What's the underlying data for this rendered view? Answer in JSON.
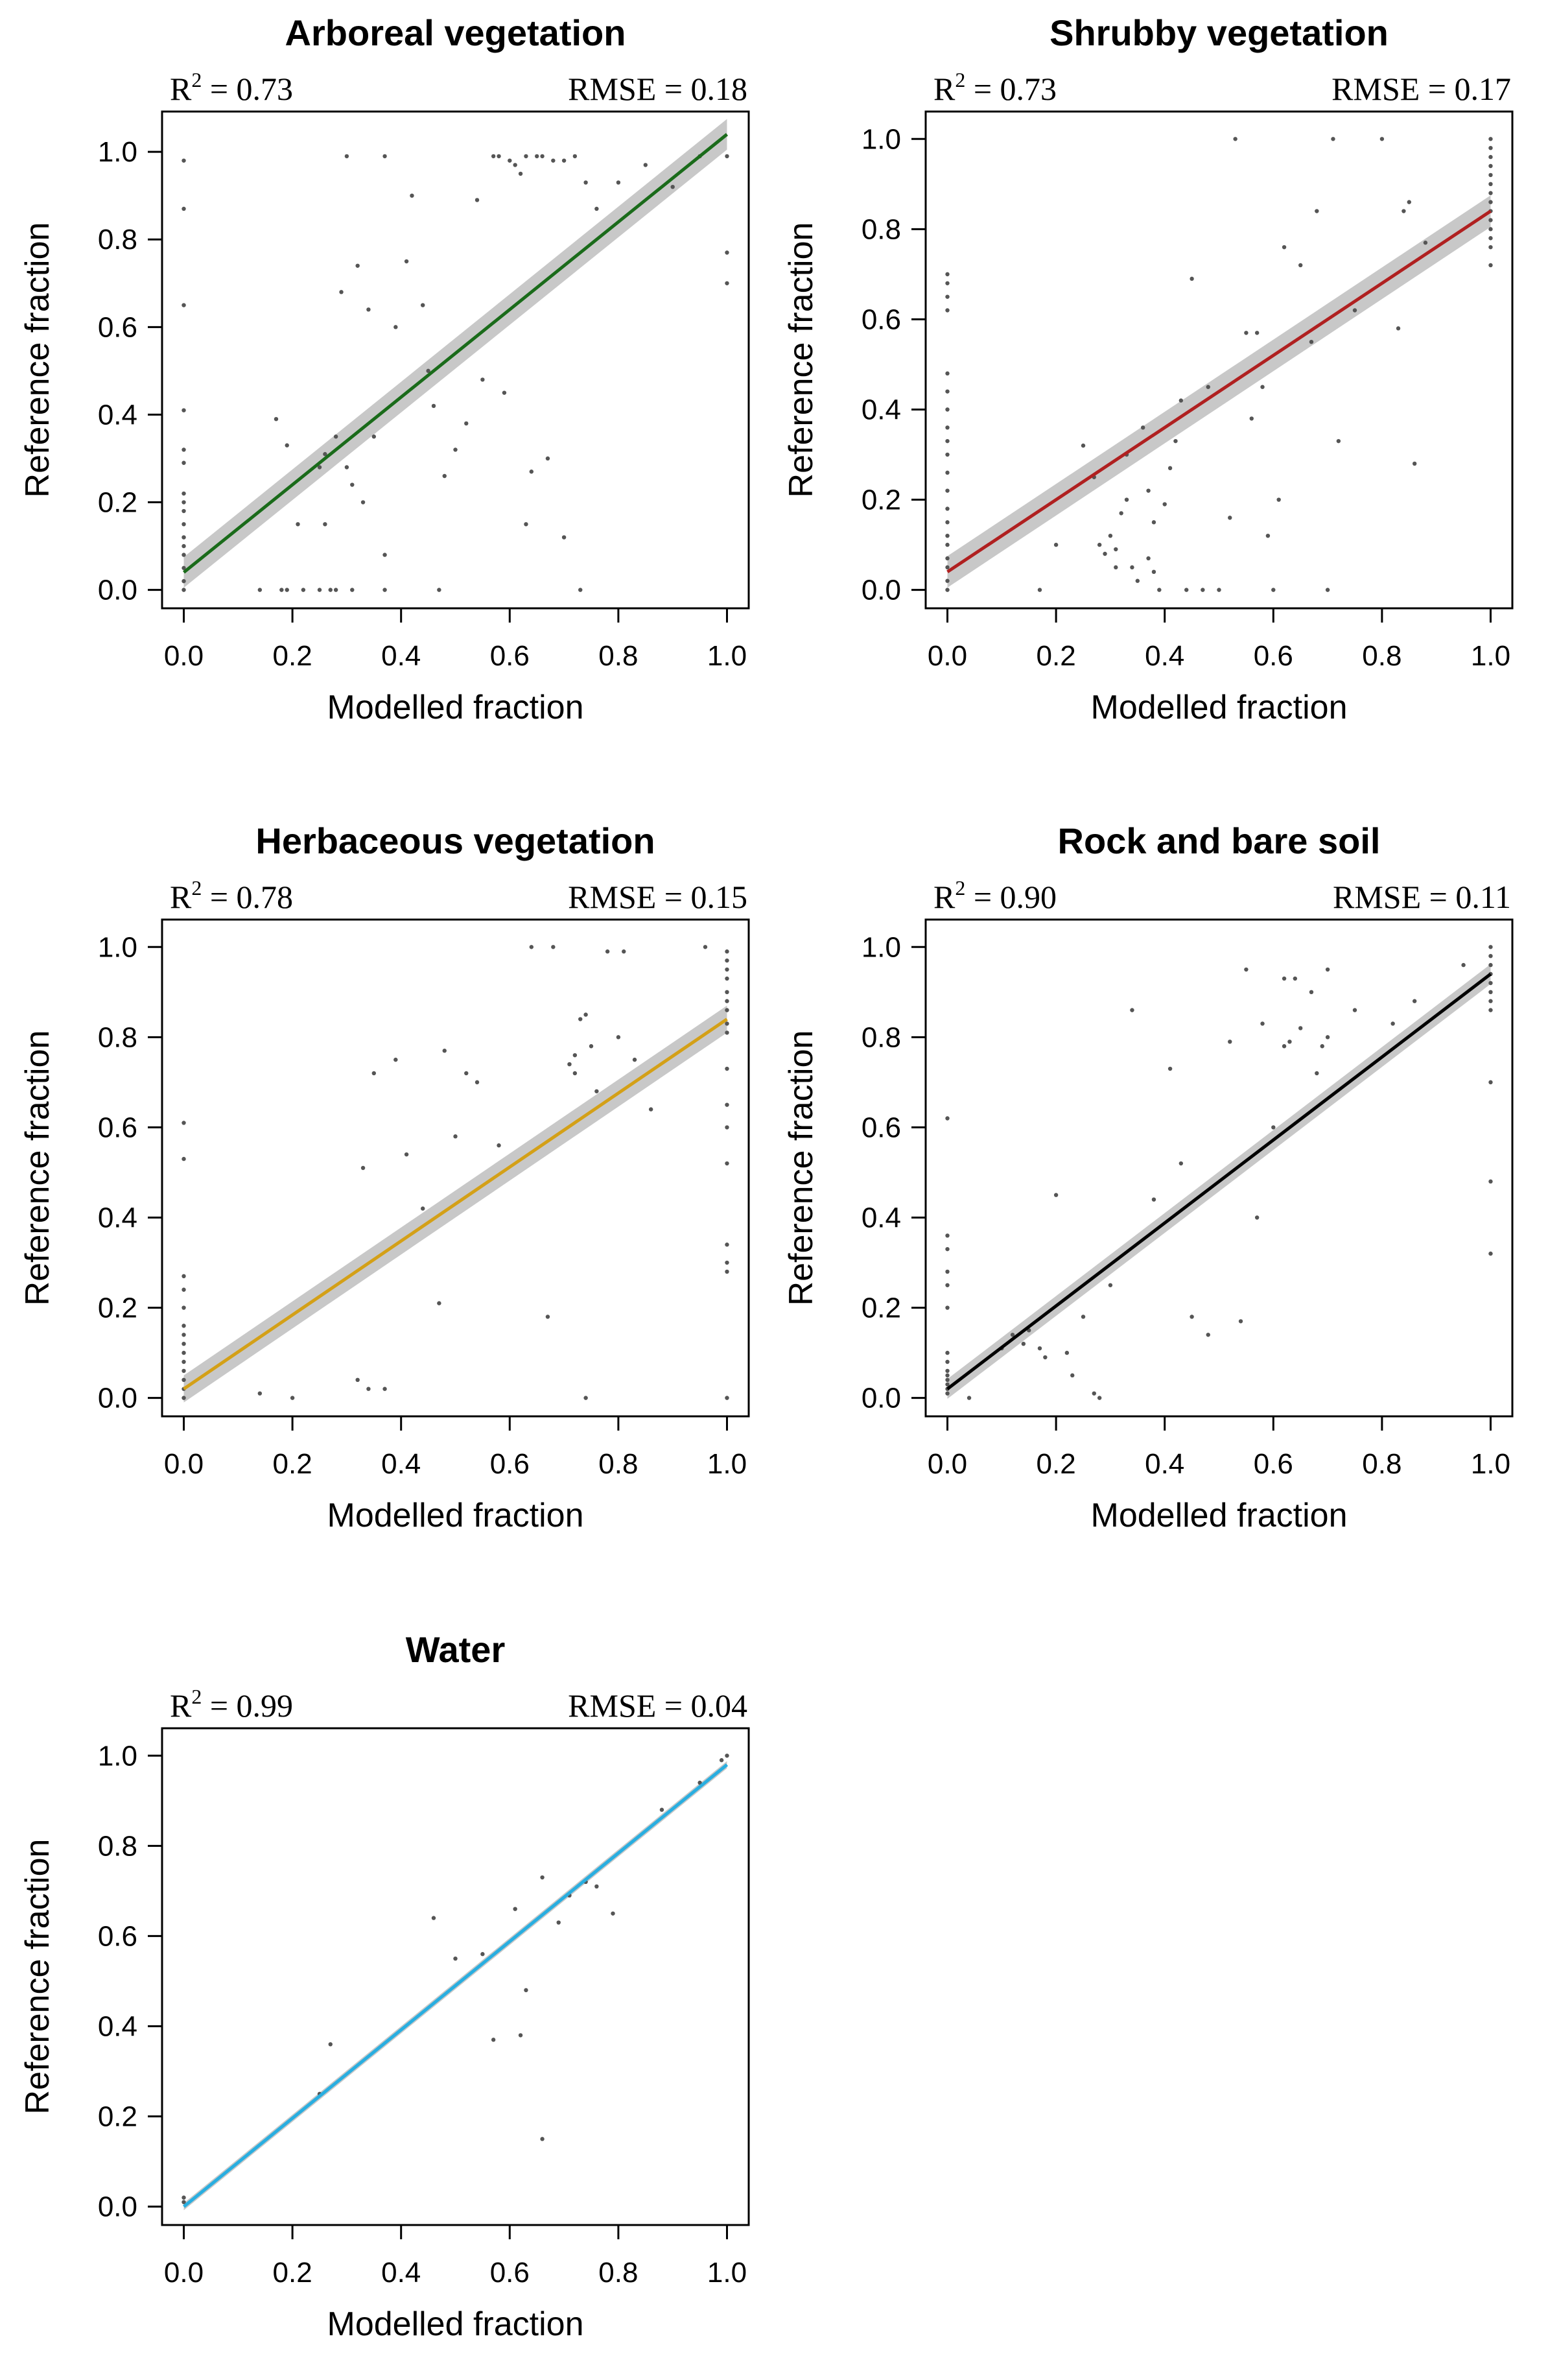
{
  "chart_data": [
    {
      "type": "scatter",
      "title": "Arboreal vegetation",
      "r2": "0.73",
      "rmse": "RMSE = 0.18",
      "xlabel": "Modelled fraction",
      "ylabel": "Reference fraction",
      "xlim": [
        0,
        1
      ],
      "ylim": [
        0,
        1.05
      ],
      "xticks": [
        "0.0",
        "0.2",
        "0.4",
        "0.6",
        "0.8",
        "1.0"
      ],
      "yticks": [
        "0.0",
        "0.2",
        "0.4",
        "0.6",
        "0.8",
        "1.0"
      ],
      "fit": {
        "x0": 0,
        "y0": 0.04,
        "x1": 1,
        "y1": 1.04,
        "band": 0.035,
        "color": "#1a6b1a"
      },
      "points": [
        [
          0,
          0.98
        ],
        [
          0,
          0.87
        ],
        [
          0,
          0.65
        ],
        [
          0,
          0.41
        ],
        [
          0,
          0.32
        ],
        [
          0,
          0.29
        ],
        [
          0,
          0.22
        ],
        [
          0,
          0.2
        ],
        [
          0,
          0.18
        ],
        [
          0,
          0.15
        ],
        [
          0,
          0.12
        ],
        [
          0,
          0.1
        ],
        [
          0,
          0.08
        ],
        [
          0,
          0.05
        ],
        [
          0,
          0.02
        ],
        [
          0,
          0
        ],
        [
          0.17,
          0.39
        ],
        [
          0.19,
          0.33
        ],
        [
          0.25,
          0.28
        ],
        [
          0.26,
          0.31
        ],
        [
          0.28,
          0.35
        ],
        [
          0.3,
          0.28
        ],
        [
          0.31,
          0.24
        ],
        [
          0.33,
          0.2
        ],
        [
          0.35,
          0.35
        ],
        [
          0.29,
          0.68
        ],
        [
          0.32,
          0.74
        ],
        [
          0.34,
          0.64
        ],
        [
          0.37,
          0.99
        ],
        [
          0.39,
          0.6
        ],
        [
          0.41,
          0.75
        ],
        [
          0.42,
          0.9
        ],
        [
          0.44,
          0.65
        ],
        [
          0.45,
          0.5
        ],
        [
          0.46,
          0.42
        ],
        [
          0.48,
          0.26
        ],
        [
          0.5,
          0.32
        ],
        [
          0.52,
          0.38
        ],
        [
          0.54,
          0.89
        ],
        [
          0.55,
          0.48
        ],
        [
          0.57,
          0.99
        ],
        [
          0.58,
          0.99
        ],
        [
          0.59,
          0.45
        ],
        [
          0.6,
          0.98
        ],
        [
          0.61,
          0.97
        ],
        [
          0.62,
          0.95
        ],
        [
          0.63,
          0.99
        ],
        [
          0.64,
          0.27
        ],
        [
          0.65,
          0.99
        ],
        [
          0.66,
          0.99
        ],
        [
          0.68,
          0.98
        ],
        [
          0.7,
          0.98
        ],
        [
          0.72,
          0.99
        ],
        [
          0.74,
          0.93
        ],
        [
          0.76,
          0.87
        ],
        [
          0.8,
          0.93
        ],
        [
          0.85,
          0.97
        ],
        [
          0.9,
          0.92
        ],
        [
          0.95,
          0.99
        ],
        [
          1,
          0.99
        ],
        [
          1,
          0.77
        ],
        [
          1,
          0.7
        ],
        [
          0.14,
          0
        ],
        [
          0.18,
          0
        ],
        [
          0.19,
          0
        ],
        [
          0.22,
          0
        ],
        [
          0.25,
          0
        ],
        [
          0.27,
          0
        ],
        [
          0.28,
          0
        ],
        [
          0.31,
          0
        ],
        [
          0.37,
          0
        ],
        [
          0.47,
          0
        ],
        [
          0.73,
          0
        ],
        [
          0.21,
          0.15
        ],
        [
          0.26,
          0.15
        ],
        [
          0.37,
          0.08
        ],
        [
          0.3,
          0.99
        ],
        [
          0.63,
          0.15
        ],
        [
          0.67,
          0.3
        ],
        [
          0.7,
          0.12
        ]
      ]
    },
    {
      "type": "scatter",
      "title": "Shrubby vegetation",
      "r2": "0.73",
      "rmse": "RMSE = 0.17",
      "xlabel": "Modelled fraction",
      "ylabel": "Reference fraction",
      "xlim": [
        0,
        1
      ],
      "ylim": [
        0,
        1.02
      ],
      "xticks": [
        "0.0",
        "0.2",
        "0.4",
        "0.6",
        "0.8",
        "1.0"
      ],
      "yticks": [
        "0.0",
        "0.2",
        "0.4",
        "0.6",
        "0.8",
        "1.0"
      ],
      "fit": {
        "x0": 0,
        "y0": 0.04,
        "x1": 1,
        "y1": 0.84,
        "band": 0.035,
        "color": "#b02020"
      },
      "points": [
        [
          0,
          0.7
        ],
        [
          0,
          0.68
        ],
        [
          0,
          0.65
        ],
        [
          0,
          0.62
        ],
        [
          0,
          0.48
        ],
        [
          0,
          0.44
        ],
        [
          0,
          0.4
        ],
        [
          0,
          0.36
        ],
        [
          0,
          0.33
        ],
        [
          0,
          0.3
        ],
        [
          0,
          0.26
        ],
        [
          0,
          0.22
        ],
        [
          0,
          0.18
        ],
        [
          0,
          0.15
        ],
        [
          0,
          0.12
        ],
        [
          0,
          0.1
        ],
        [
          0,
          0.07
        ],
        [
          0,
          0.05
        ],
        [
          0,
          0.02
        ],
        [
          0,
          0
        ],
        [
          0.17,
          0
        ],
        [
          0.2,
          0.1
        ],
        [
          0.25,
          0.32
        ],
        [
          0.27,
          0.25
        ],
        [
          0.28,
          0.1
        ],
        [
          0.29,
          0.08
        ],
        [
          0.3,
          0.12
        ],
        [
          0.31,
          0.05
        ],
        [
          0.32,
          0.17
        ],
        [
          0.33,
          0.3
        ],
        [
          0.34,
          0.05
        ],
        [
          0.35,
          0.02
        ],
        [
          0.36,
          0.36
        ],
        [
          0.37,
          0.22
        ],
        [
          0.38,
          0.15
        ],
        [
          0.39,
          0.0
        ],
        [
          0.4,
          0.19
        ],
        [
          0.41,
          0.27
        ],
        [
          0.42,
          0.33
        ],
        [
          0.43,
          0.42
        ],
        [
          0.44,
          0.0
        ],
        [
          0.45,
          0.69
        ],
        [
          0.47,
          0.0
        ],
        [
          0.48,
          0.45
        ],
        [
          0.5,
          0.0
        ],
        [
          0.53,
          1.0
        ],
        [
          0.55,
          0.57
        ],
        [
          0.56,
          0.38
        ],
        [
          0.57,
          0.57
        ],
        [
          0.58,
          0.45
        ],
        [
          0.6,
          0.0
        ],
        [
          0.61,
          0.2
        ],
        [
          0.62,
          0.76
        ],
        [
          0.65,
          0.72
        ],
        [
          0.67,
          0.55
        ],
        [
          0.68,
          0.84
        ],
        [
          0.7,
          0.0
        ],
        [
          0.71,
          1.0
        ],
        [
          0.72,
          0.33
        ],
        [
          0.75,
          0.62
        ],
        [
          0.8,
          1.0
        ],
        [
          0.83,
          0.58
        ],
        [
          0.84,
          0.84
        ],
        [
          0.85,
          0.86
        ],
        [
          0.86,
          0.28
        ],
        [
          0.88,
          0.77
        ],
        [
          1,
          1.0
        ],
        [
          1,
          0.98
        ],
        [
          1,
          0.96
        ],
        [
          1,
          0.94
        ],
        [
          1,
          0.92
        ],
        [
          1,
          0.9
        ],
        [
          1,
          0.88
        ],
        [
          1,
          0.86
        ],
        [
          1,
          0.84
        ],
        [
          1,
          0.82
        ],
        [
          1,
          0.8
        ],
        [
          1,
          0.78
        ],
        [
          1,
          0.76
        ],
        [
          1,
          0.72
        ],
        [
          0.31,
          0.09
        ],
        [
          0.37,
          0.07
        ],
        [
          0.33,
          0.2
        ],
        [
          0.38,
          0.04
        ],
        [
          0.52,
          0.16
        ],
        [
          0.59,
          0.12
        ]
      ]
    },
    {
      "type": "scatter",
      "title": "Herbaceous vegetation",
      "r2": "0.78",
      "rmse": "RMSE = 0.15",
      "xlabel": "Modelled fraction",
      "ylabel": "Reference fraction",
      "xlim": [
        0,
        1
      ],
      "ylim": [
        0,
        1.02
      ],
      "xticks": [
        "0.0",
        "0.2",
        "0.4",
        "0.6",
        "0.8",
        "1.0"
      ],
      "yticks": [
        "0.0",
        "0.2",
        "0.4",
        "0.6",
        "0.8",
        "1.0"
      ],
      "fit": {
        "x0": 0,
        "y0": 0.02,
        "x1": 1,
        "y1": 0.84,
        "band": 0.03,
        "color": "#d4a017"
      },
      "points": [
        [
          0,
          0.61
        ],
        [
          0,
          0.53
        ],
        [
          0,
          0.27
        ],
        [
          0,
          0.24
        ],
        [
          0,
          0.2
        ],
        [
          0,
          0.16
        ],
        [
          0,
          0.14
        ],
        [
          0,
          0.12
        ],
        [
          0,
          0.1
        ],
        [
          0,
          0.08
        ],
        [
          0,
          0.06
        ],
        [
          0,
          0.04
        ],
        [
          0,
          0.02
        ],
        [
          0,
          0.0
        ],
        [
          0.14,
          0.01
        ],
        [
          0.2,
          0.0
        ],
        [
          0.32,
          0.04
        ],
        [
          0.33,
          0.51
        ],
        [
          0.34,
          0.02
        ],
        [
          0.35,
          0.72
        ],
        [
          0.37,
          0.02
        ],
        [
          0.39,
          0.75
        ],
        [
          0.41,
          0.54
        ],
        [
          0.44,
          0.42
        ],
        [
          0.47,
          0.21
        ],
        [
          0.48,
          0.77
        ],
        [
          0.5,
          0.58
        ],
        [
          0.52,
          0.72
        ],
        [
          0.54,
          0.7
        ],
        [
          0.58,
          0.56
        ],
        [
          0.64,
          1.0
        ],
        [
          0.68,
          1.0
        ],
        [
          0.67,
          0.18
        ],
        [
          0.72,
          0.76
        ],
        [
          0.73,
          0.84
        ],
        [
          0.74,
          0.85
        ],
        [
          0.75,
          0.78
        ],
        [
          0.76,
          0.68
        ],
        [
          0.78,
          0.99
        ],
        [
          0.8,
          0.8
        ],
        [
          0.81,
          0.99
        ],
        [
          0.83,
          0.75
        ],
        [
          0.86,
          0.64
        ],
        [
          0.96,
          1.0
        ],
        [
          1,
          0.99
        ],
        [
          1,
          0.97
        ],
        [
          1,
          0.95
        ],
        [
          1,
          0.93
        ],
        [
          1,
          0.9
        ],
        [
          1,
          0.88
        ],
        [
          1,
          0.86
        ],
        [
          1,
          0.83
        ],
        [
          1,
          0.81
        ],
        [
          1,
          0.73
        ],
        [
          1,
          0.65
        ],
        [
          1,
          0.6
        ],
        [
          1,
          0.52
        ],
        [
          1,
          0.34
        ],
        [
          1,
          0.3
        ],
        [
          1,
          0.28
        ],
        [
          1,
          0.0
        ],
        [
          0.74,
          0.0
        ],
        [
          0.71,
          0.74
        ],
        [
          0.72,
          0.72
        ]
      ]
    },
    {
      "type": "scatter",
      "title": "Rock and bare soil",
      "r2": "0.90",
      "rmse": "RMSE = 0.11",
      "xlabel": "Modelled fraction",
      "ylabel": "Reference fraction",
      "xlim": [
        0,
        1
      ],
      "ylim": [
        0,
        1.02
      ],
      "xticks": [
        "0.0",
        "0.2",
        "0.4",
        "0.6",
        "0.8",
        "1.0"
      ],
      "yticks": [
        "0.0",
        "0.2",
        "0.4",
        "0.6",
        "0.8",
        "1.0"
      ],
      "fit": {
        "x0": 0,
        "y0": 0.02,
        "x1": 1,
        "y1": 0.94,
        "band": 0.022,
        "color": "#000000"
      },
      "points": [
        [
          0,
          0.62
        ],
        [
          0,
          0.36
        ],
        [
          0,
          0.33
        ],
        [
          0,
          0.28
        ],
        [
          0,
          0.25
        ],
        [
          0,
          0.2
        ],
        [
          0,
          0.1
        ],
        [
          0,
          0.08
        ],
        [
          0,
          0.06
        ],
        [
          0,
          0.05
        ],
        [
          0,
          0.04
        ],
        [
          0,
          0.03
        ],
        [
          0,
          0.02
        ],
        [
          0,
          0.01
        ],
        [
          0.04,
          0.0
        ],
        [
          0.1,
          0.11
        ],
        [
          0.12,
          0.14
        ],
        [
          0.14,
          0.12
        ],
        [
          0.15,
          0.15
        ],
        [
          0.17,
          0.11
        ],
        [
          0.18,
          0.09
        ],
        [
          0.2,
          0.45
        ],
        [
          0.22,
          0.1
        ],
        [
          0.23,
          0.05
        ],
        [
          0.25,
          0.18
        ],
        [
          0.27,
          0.01
        ],
        [
          0.28,
          0.0
        ],
        [
          0.3,
          0.25
        ],
        [
          0.34,
          0.86
        ],
        [
          0.38,
          0.44
        ],
        [
          0.41,
          0.73
        ],
        [
          0.43,
          0.52
        ],
        [
          0.45,
          0.18
        ],
        [
          0.48,
          0.14
        ],
        [
          0.52,
          0.79
        ],
        [
          0.54,
          0.17
        ],
        [
          0.55,
          0.95
        ],
        [
          0.57,
          0.4
        ],
        [
          0.58,
          0.83
        ],
        [
          0.62,
          0.78
        ],
        [
          0.63,
          0.79
        ],
        [
          0.64,
          0.93
        ],
        [
          0.65,
          0.82
        ],
        [
          0.67,
          0.9
        ],
        [
          0.68,
          0.72
        ],
        [
          0.69,
          0.78
        ],
        [
          0.7,
          0.8
        ],
        [
          0.7,
          0.95
        ],
        [
          0.75,
          0.86
        ],
        [
          0.82,
          0.83
        ],
        [
          0.86,
          0.88
        ],
        [
          0.95,
          0.96
        ],
        [
          1,
          1.0
        ],
        [
          1,
          0.98
        ],
        [
          1,
          0.96
        ],
        [
          1,
          0.94
        ],
        [
          1,
          0.92
        ],
        [
          1,
          0.9
        ],
        [
          1,
          0.88
        ],
        [
          1,
          0.86
        ],
        [
          1,
          0.7
        ],
        [
          1,
          0.48
        ],
        [
          1,
          0.32
        ],
        [
          0.62,
          0.93
        ],
        [
          0.6,
          0.6
        ]
      ]
    },
    {
      "type": "scatter",
      "title": "Water",
      "r2": "0.99",
      "rmse": "RMSE = 0.04",
      "xlabel": "Modelled fraction",
      "ylabel": "Reference fraction",
      "xlim": [
        0,
        1
      ],
      "ylim": [
        0,
        1.02
      ],
      "xticks": [
        "0.0",
        "0.2",
        "0.4",
        "0.6",
        "0.8",
        "1.0"
      ],
      "yticks": [
        "0.0",
        "0.2",
        "0.4",
        "0.6",
        "0.8",
        "1.0"
      ],
      "fit": {
        "x0": 0,
        "y0": 0.0,
        "x1": 1,
        "y1": 0.98,
        "band": 0.008,
        "color": "#29aee0"
      },
      "points": [
        [
          0,
          0.01
        ],
        [
          0,
          0.02
        ],
        [
          0.27,
          0.36
        ],
        [
          0.46,
          0.64
        ],
        [
          0.5,
          0.55
        ],
        [
          0.57,
          0.37
        ],
        [
          0.61,
          0.66
        ],
        [
          0.62,
          0.38
        ],
        [
          0.63,
          0.48
        ],
        [
          0.66,
          0.73
        ],
        [
          0.66,
          0.15
        ],
        [
          0.69,
          0.63
        ],
        [
          0.71,
          0.69
        ],
        [
          0.74,
          0.72
        ],
        [
          0.76,
          0.71
        ],
        [
          0.79,
          0.65
        ],
        [
          0.88,
          0.88
        ],
        [
          0.95,
          0.94
        ],
        [
          0.99,
          0.99
        ],
        [
          1,
          1.0
        ],
        [
          0.25,
          0.25
        ],
        [
          0.55,
          0.56
        ]
      ]
    }
  ]
}
